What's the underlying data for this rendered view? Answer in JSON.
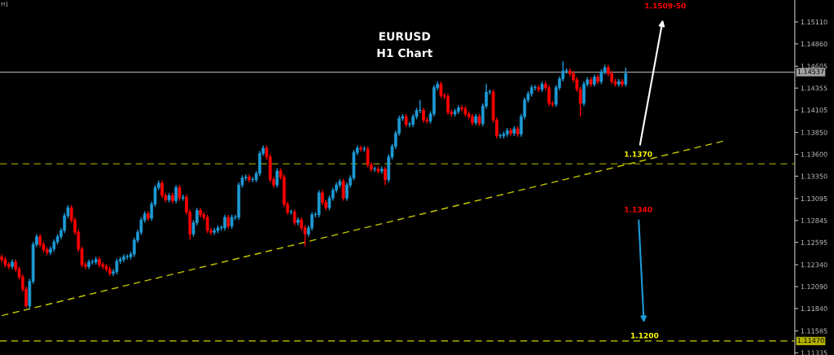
{
  "chart_data": {
    "type": "candlestick",
    "title": "EURUSD",
    "subtitle": "H1 Chart",
    "categories": [
      null,
      null,
      null,
      null,
      null,
      null,
      null,
      null,
      null,
      null,
      null,
      null,
      null,
      null,
      null,
      null,
      null,
      null,
      null,
      null,
      null,
      null,
      null,
      null,
      null,
      null,
      null,
      null,
      null,
      null,
      null,
      null,
      null,
      null,
      null,
      null,
      null,
      null,
      null,
      null,
      null,
      null,
      null,
      null,
      null,
      null,
      null,
      null,
      null,
      null,
      null,
      null,
      null,
      null,
      null,
      null,
      null,
      null,
      null,
      null,
      null,
      null,
      null,
      null,
      null,
      null,
      null,
      null,
      null,
      null,
      null,
      null,
      null,
      null,
      null,
      null,
      null,
      null,
      null,
      null,
      null,
      null,
      null,
      null,
      null,
      null,
      null,
      null,
      null,
      null,
      null,
      null,
      null,
      null,
      null,
      null,
      null,
      null,
      null,
      null,
      null,
      null,
      null,
      null,
      null,
      null,
      null,
      null,
      null,
      null,
      null,
      null,
      null,
      null,
      null,
      null,
      null,
      null,
      null,
      null,
      null,
      null,
      null,
      null,
      null,
      null,
      null,
      null,
      null,
      null,
      null,
      null,
      null,
      null,
      null,
      null,
      null,
      null,
      null,
      null,
      null,
      null,
      null,
      null,
      null,
      null,
      null,
      null,
      null,
      null,
      null,
      null,
      null,
      null,
      null,
      null,
      null,
      null,
      null,
      null,
      null,
      null,
      null,
      null,
      null,
      null,
      null,
      null,
      null,
      null,
      null,
      null,
      null,
      null,
      null,
      null,
      null,
      null,
      null,
      null,
      null,
      null,
      null,
      null,
      null,
      null,
      null,
      null,
      null,
      null,
      null,
      null,
      null,
      null,
      null,
      null,
      null,
      null,
      null,
      null,
      null,
      null,
      null,
      null,
      null,
      null,
      null,
      null,
      null,
      null,
      null,
      null,
      null,
      null,
      null,
      null,
      null,
      null,
      null,
      null,
      null,
      null,
      null,
      null,
      null,
      null,
      null,
      null
    ],
    "ohlc": [
      [
        1.1243,
        1.1246,
        1.1237,
        1.124
      ],
      [
        1.124,
        1.1243,
        1.1231,
        1.1234
      ],
      [
        1.1234,
        1.1237,
        1.1229,
        1.1232
      ],
      [
        1.1232,
        1.124,
        1.1229,
        1.1237
      ],
      [
        1.1237,
        1.124,
        1.1226,
        1.1229
      ],
      [
        1.1229,
        1.1232,
        1.1217,
        1.122
      ],
      [
        1.122,
        1.1223,
        1.1203,
        1.1206
      ],
      [
        1.1206,
        1.1209,
        1.1185,
        1.1187
      ],
      [
        1.1187,
        1.1218,
        1.1184,
        1.1215
      ],
      [
        1.1215,
        1.126,
        1.1212,
        1.1257
      ],
      [
        1.1257,
        1.1269,
        1.1254,
        1.1266
      ],
      [
        1.1266,
        1.1269,
        1.1254,
        1.1257
      ],
      [
        1.1257,
        1.126,
        1.1248,
        1.1251
      ],
      [
        1.1251,
        1.1254,
        1.1245,
        1.1248
      ],
      [
        1.1248,
        1.1255,
        1.1245,
        1.1252
      ],
      [
        1.1252,
        1.1263,
        1.1249,
        1.126
      ],
      [
        1.126,
        1.1269,
        1.1257,
        1.1266
      ],
      [
        1.1266,
        1.1276,
        1.1263,
        1.1273
      ],
      [
        1.1273,
        1.1293,
        1.127,
        1.129
      ],
      [
        1.129,
        1.1302,
        1.1287,
        1.1299
      ],
      [
        1.1299,
        1.1302,
        1.1282,
        1.1285
      ],
      [
        1.1285,
        1.1288,
        1.1268,
        1.1271
      ],
      [
        1.1271,
        1.1274,
        1.1249,
        1.1252
      ],
      [
        1.1252,
        1.1255,
        1.1231,
        1.1234
      ],
      [
        1.1234,
        1.1237,
        1.1229,
        1.1232
      ],
      [
        1.1232,
        1.124,
        1.1229,
        1.1237
      ],
      [
        1.1237,
        1.124,
        1.1234,
        1.1237
      ],
      [
        1.1237,
        1.1243,
        1.1234,
        1.124
      ],
      [
        1.124,
        1.1243,
        1.1231,
        1.1234
      ],
      [
        1.1234,
        1.1237,
        1.1229,
        1.1232
      ],
      [
        1.1232,
        1.1235,
        1.1226,
        1.1229
      ],
      [
        1.1229,
        1.1232,
        1.1221,
        1.1224
      ],
      [
        1.1224,
        1.1229,
        1.1221,
        1.1226
      ],
      [
        1.1226,
        1.1241,
        1.1223,
        1.1238
      ],
      [
        1.1238,
        1.1243,
        1.1235,
        1.124
      ],
      [
        1.124,
        1.1246,
        1.1237,
        1.1243
      ],
      [
        1.1243,
        1.1246,
        1.124,
        1.1243
      ],
      [
        1.1243,
        1.1249,
        1.124,
        1.1246
      ],
      [
        1.1246,
        1.1265,
        1.1243,
        1.1262
      ],
      [
        1.1262,
        1.1274,
        1.1259,
        1.1271
      ],
      [
        1.1271,
        1.1288,
        1.1268,
        1.1285
      ],
      [
        1.1285,
        1.1295,
        1.1282,
        1.1292
      ],
      [
        1.1292,
        1.1295,
        1.1284,
        1.1287
      ],
      [
        1.1287,
        1.1306,
        1.1284,
        1.1303
      ],
      [
        1.1303,
        1.1325,
        1.13,
        1.1322
      ],
      [
        1.1322,
        1.133,
        1.1319,
        1.1327
      ],
      [
        1.1327,
        1.133,
        1.131,
        1.1313
      ],
      [
        1.1313,
        1.1316,
        1.1305,
        1.1308
      ],
      [
        1.1308,
        1.1316,
        1.1305,
        1.1313
      ],
      [
        1.1313,
        1.1316,
        1.1304,
        1.1307
      ],
      [
        1.1307,
        1.1325,
        1.1304,
        1.1322
      ],
      [
        1.1322,
        1.1325,
        1.1307,
        1.131
      ],
      [
        1.131,
        1.1314,
        1.1307,
        1.1311
      ],
      [
        1.1311,
        1.1314,
        1.1291,
        1.1294
      ],
      [
        1.1294,
        1.1297,
        1.1263,
        1.1269
      ],
      [
        1.1269,
        1.1285,
        1.1266,
        1.1282
      ],
      [
        1.1282,
        1.1299,
        1.1279,
        1.1296
      ],
      [
        1.1296,
        1.1299,
        1.1288,
        1.1291
      ],
      [
        1.1291,
        1.1294,
        1.1285,
        1.1288
      ],
      [
        1.1288,
        1.1291,
        1.127,
        1.1273
      ],
      [
        1.1273,
        1.1276,
        1.1268,
        1.1271
      ],
      [
        1.1271,
        1.1276,
        1.1268,
        1.1273
      ],
      [
        1.1273,
        1.1279,
        1.127,
        1.1276
      ],
      [
        1.1276,
        1.1279,
        1.1273,
        1.1276
      ],
      [
        1.1276,
        1.1291,
        1.1273,
        1.1288
      ],
      [
        1.1288,
        1.1291,
        1.1275,
        1.1278
      ],
      [
        1.1278,
        1.1291,
        1.1275,
        1.1288
      ],
      [
        1.1288,
        1.1291,
        1.1285,
        1.1288
      ],
      [
        1.1288,
        1.1328,
        1.1285,
        1.1325
      ],
      [
        1.1325,
        1.1336,
        1.1322,
        1.1333
      ],
      [
        1.1333,
        1.1337,
        1.133,
        1.1334
      ],
      [
        1.1334,
        1.1337,
        1.1328,
        1.1331
      ],
      [
        1.1331,
        1.1334,
        1.1328,
        1.1331
      ],
      [
        1.1331,
        1.1341,
        1.1328,
        1.1338
      ],
      [
        1.1338,
        1.1364,
        1.1335,
        1.1361
      ],
      [
        1.1361,
        1.137,
        1.1358,
        1.1367
      ],
      [
        1.1367,
        1.137,
        1.1354,
        1.1357
      ],
      [
        1.1357,
        1.136,
        1.1328,
        1.1331
      ],
      [
        1.1331,
        1.1334,
        1.1322,
        1.1325
      ],
      [
        1.1325,
        1.1344,
        1.1322,
        1.1341
      ],
      [
        1.1341,
        1.1344,
        1.1331,
        1.1334
      ],
      [
        1.1334,
        1.1337,
        1.13,
        1.1303
      ],
      [
        1.1303,
        1.1306,
        1.1291,
        1.1294
      ],
      [
        1.1294,
        1.1297,
        1.1291,
        1.1294
      ],
      [
        1.1294,
        1.1297,
        1.1279,
        1.1282
      ],
      [
        1.1282,
        1.1288,
        1.1279,
        1.1285
      ],
      [
        1.1285,
        1.1288,
        1.1273,
        1.1276
      ],
      [
        1.1276,
        1.1279,
        1.1255,
        1.1269
      ],
      [
        1.1269,
        1.1279,
        1.1266,
        1.1276
      ],
      [
        1.1276,
        1.1294,
        1.1273,
        1.1291
      ],
      [
        1.1291,
        1.1294,
        1.1288,
        1.1291
      ],
      [
        1.1291,
        1.1319,
        1.1288,
        1.1316
      ],
      [
        1.1316,
        1.1319,
        1.1302,
        1.1305
      ],
      [
        1.1305,
        1.1308,
        1.1296,
        1.1299
      ],
      [
        1.1299,
        1.1313,
        1.1296,
        1.131
      ],
      [
        1.131,
        1.1322,
        1.1307,
        1.1319
      ],
      [
        1.1319,
        1.1328,
        1.1316,
        1.1325
      ],
      [
        1.1325,
        1.1332,
        1.1322,
        1.1329
      ],
      [
        1.1329,
        1.1332,
        1.1307,
        1.131
      ],
      [
        1.131,
        1.1328,
        1.1307,
        1.1325
      ],
      [
        1.1325,
        1.1336,
        1.1322,
        1.1333
      ],
      [
        1.1333,
        1.1365,
        1.133,
        1.1362
      ],
      [
        1.1362,
        1.137,
        1.1359,
        1.1367
      ],
      [
        1.1367,
        1.137,
        1.1363,
        1.1366
      ],
      [
        1.1366,
        1.1369,
        1.1363,
        1.1366
      ],
      [
        1.1366,
        1.1369,
        1.1345,
        1.1348
      ],
      [
        1.1348,
        1.1351,
        1.134,
        1.1343
      ],
      [
        1.1343,
        1.1346,
        1.134,
        1.1343
      ],
      [
        1.1343,
        1.1346,
        1.1338,
        1.1341
      ],
      [
        1.1341,
        1.1346,
        1.1338,
        1.1343
      ],
      [
        1.1343,
        1.1346,
        1.1325,
        1.1331
      ],
      [
        1.1331,
        1.136,
        1.1328,
        1.1357
      ],
      [
        1.1357,
        1.1372,
        1.1354,
        1.1369
      ],
      [
        1.1369,
        1.1387,
        1.1366,
        1.1384
      ],
      [
        1.1384,
        1.1404,
        1.1381,
        1.1401
      ],
      [
        1.1401,
        1.1406,
        1.1398,
        1.1403
      ],
      [
        1.1403,
        1.1406,
        1.1391,
        1.1394
      ],
      [
        1.1394,
        1.1397,
        1.1391,
        1.1394
      ],
      [
        1.1394,
        1.1406,
        1.1391,
        1.1403
      ],
      [
        1.1403,
        1.1413,
        1.14,
        1.141
      ],
      [
        1.141,
        1.1422,
        1.1407,
        1.141
      ],
      [
        1.141,
        1.1413,
        1.1396,
        1.1399
      ],
      [
        1.1399,
        1.1402,
        1.1395,
        1.1398
      ],
      [
        1.1398,
        1.1409,
        1.1395,
        1.1406
      ],
      [
        1.1406,
        1.1439,
        1.1403,
        1.1436
      ],
      [
        1.1436,
        1.1443,
        1.1433,
        1.144
      ],
      [
        1.144,
        1.1443,
        1.1424,
        1.1427
      ],
      [
        1.1427,
        1.143,
        1.1423,
        1.1426
      ],
      [
        1.1426,
        1.1429,
        1.1405,
        1.1408
      ],
      [
        1.1408,
        1.1411,
        1.1403,
        1.1406
      ],
      [
        1.1406,
        1.1412,
        1.1403,
        1.1409
      ],
      [
        1.1409,
        1.1416,
        1.1406,
        1.1413
      ],
      [
        1.1413,
        1.1416,
        1.1409,
        1.1412
      ],
      [
        1.1412,
        1.1415,
        1.1403,
        1.1406
      ],
      [
        1.1406,
        1.1409,
        1.14,
        1.1403
      ],
      [
        1.1403,
        1.1406,
        1.1393,
        1.1396
      ],
      [
        1.1396,
        1.1406,
        1.1393,
        1.1403
      ],
      [
        1.1403,
        1.1406,
        1.1392,
        1.1395
      ],
      [
        1.1395,
        1.1418,
        1.1392,
        1.1415
      ],
      [
        1.1415,
        1.144,
        1.1412,
        1.1431
      ],
      [
        1.1431,
        1.1434,
        1.1428,
        1.1431
      ],
      [
        1.1431,
        1.1434,
        1.1396,
        1.1399
      ],
      [
        1.1399,
        1.1402,
        1.1378,
        1.1381
      ],
      [
        1.1381,
        1.1384,
        1.1378,
        1.1381
      ],
      [
        1.1381,
        1.1386,
        1.1378,
        1.1383
      ],
      [
        1.1383,
        1.139,
        1.138,
        1.1387
      ],
      [
        1.1387,
        1.139,
        1.1381,
        1.1384
      ],
      [
        1.1384,
        1.1392,
        1.1381,
        1.1389
      ],
      [
        1.1389,
        1.1392,
        1.138,
        1.1383
      ],
      [
        1.1383,
        1.1406,
        1.138,
        1.1403
      ],
      [
        1.1403,
        1.1425,
        1.14,
        1.1422
      ],
      [
        1.1422,
        1.1432,
        1.1419,
        1.1429
      ],
      [
        1.1429,
        1.1439,
        1.1426,
        1.1436
      ],
      [
        1.1436,
        1.1439,
        1.1433,
        1.1436
      ],
      [
        1.1436,
        1.1439,
        1.1431,
        1.1434
      ],
      [
        1.1434,
        1.1443,
        1.1431,
        1.144
      ],
      [
        1.144,
        1.1443,
        1.1433,
        1.1436
      ],
      [
        1.1436,
        1.1439,
        1.1415,
        1.1418
      ],
      [
        1.1418,
        1.1421,
        1.1414,
        1.1417
      ],
      [
        1.1417,
        1.1439,
        1.1414,
        1.1436
      ],
      [
        1.1436,
        1.1449,
        1.1433,
        1.1446
      ],
      [
        1.1446,
        1.1466,
        1.1443,
        1.1455
      ],
      [
        1.1455,
        1.1458,
        1.1452,
        1.1455
      ],
      [
        1.1455,
        1.1458,
        1.1449,
        1.1452
      ],
      [
        1.1452,
        1.1455,
        1.1442,
        1.1445
      ],
      [
        1.1445,
        1.1448,
        1.1431,
        1.1434
      ],
      [
        1.1434,
        1.1437,
        1.1403,
        1.1418
      ],
      [
        1.1418,
        1.1443,
        1.1415,
        1.144
      ],
      [
        1.144,
        1.1448,
        1.1437,
        1.1445
      ],
      [
        1.1445,
        1.1448,
        1.1437,
        1.144
      ],
      [
        1.144,
        1.1451,
        1.1437,
        1.1448
      ],
      [
        1.1448,
        1.1451,
        1.144,
        1.1443
      ],
      [
        1.1443,
        1.1457,
        1.144,
        1.1454
      ],
      [
        1.1454,
        1.1462,
        1.1451,
        1.1459
      ],
      [
        1.1459,
        1.1462,
        1.1449,
        1.1452
      ],
      [
        1.1452,
        1.1455,
        1.144,
        1.1443
      ],
      [
        1.1443,
        1.1446,
        1.1437,
        1.144
      ],
      [
        1.144,
        1.1446,
        1.1437,
        1.1443
      ],
      [
        1.1443,
        1.1446,
        1.1437,
        1.144
      ],
      [
        1.144,
        1.1459,
        1.1437,
        1.1452
      ],
      null,
      null,
      null,
      null,
      null,
      null,
      null,
      null,
      null,
      null,
      null,
      null,
      null,
      null,
      null,
      null,
      null,
      null,
      null,
      null,
      null,
      null,
      null,
      null,
      null,
      null,
      null,
      null,
      null,
      null,
      null,
      null,
      null,
      null,
      null,
      null,
      null,
      null,
      null,
      null,
      null,
      null,
      null,
      null,
      null,
      null,
      null,
      null
    ],
    "series": [
      {
        "type": "line",
        "values": [
          1.1176,
          null,
          null,
          null,
          null,
          null,
          null,
          null,
          null,
          null,
          null,
          null,
          null,
          null,
          null,
          null,
          null,
          null,
          null,
          null,
          null,
          null,
          null,
          null,
          null,
          null,
          null,
          null,
          null,
          null,
          null,
          null,
          null,
          null,
          null,
          null,
          null,
          null,
          null,
          null,
          null,
          null,
          null,
          null,
          null,
          null,
          null,
          null,
          null,
          null,
          null,
          null,
          null,
          null,
          null,
          null,
          null,
          null,
          null,
          null,
          null,
          null,
          null,
          null,
          null,
          null,
          null,
          null,
          null,
          null,
          null,
          null,
          null,
          null,
          null,
          null,
          null,
          null,
          null,
          null,
          null,
          null,
          null,
          null,
          null,
          null,
          null,
          null,
          null,
          null,
          null,
          null,
          null,
          null,
          null,
          null,
          null,
          null,
          null,
          null,
          null,
          null,
          null,
          null,
          null,
          null,
          null,
          null,
          null,
          null,
          null,
          null,
          null,
          null,
          null,
          null,
          null,
          null,
          null,
          null,
          null,
          null,
          null,
          null,
          null,
          null,
          null,
          null,
          null,
          null,
          null,
          null,
          null,
          null,
          null,
          null,
          null,
          null,
          null,
          null,
          null,
          null,
          null,
          null,
          null,
          null,
          null,
          null,
          null,
          null,
          null,
          null,
          null,
          null,
          null,
          null,
          null,
          null,
          null,
          null,
          null,
          null,
          null,
          null,
          null,
          null,
          null,
          null,
          null,
          null,
          null,
          null,
          null,
          null,
          null,
          null,
          null,
          null,
          null,
          null,
          null,
          null,
          null,
          null,
          null,
          null,
          null,
          null,
          null,
          null,
          null,
          null,
          null,
          null,
          null,
          null,
          null,
          null,
          null,
          null,
          null,
          null,
          null,
          null,
          null,
          null,
          null,
          1.1375,
          null,
          null,
          null,
          null,
          null,
          null,
          null,
          null,
          null,
          null,
          null,
          null,
          null,
          null,
          null,
          null,
          null,
          null,
          null,
          null
        ],
        "color": "#c8c800",
        "line_style": "dashed"
      }
    ],
    "ref_lines": [
      {
        "axis": "y",
        "value": 1.14537,
        "label": "1.14537",
        "color": "#a0a0a0",
        "line_style": "solid"
      },
      {
        "axis": "y",
        "value": 1.1349,
        "color": "#808000",
        "line_style": "dashed"
      },
      {
        "axis": "y",
        "value": 1.1147,
        "label": "1.11470",
        "color": "#b0b000",
        "line_style": "dashed"
      }
    ],
    "annotations": [
      "H1",
      "1.1509-50",
      "1.1370",
      "1.1340",
      "1.1200"
    ],
    "ylim": [
      1.1131,
      1.1536
    ],
    "yticks": [
      {
        "value": 1.1511,
        "label": "1.15110"
      },
      {
        "value": 1.1486,
        "label": "1.14860"
      },
      1.14605,
      1.14355,
      1.14105,
      {
        "value": 1.1385,
        "label": "1.13850"
      },
      {
        "value": 1.136,
        "label": "1.13600"
      },
      {
        "value": 1.1335,
        "label": "1.13350"
      },
      1.13095,
      1.12845,
      1.12595,
      {
        "value": 1.1234,
        "label": "1.12340"
      },
      {
        "value": 1.1209,
        "label": "1.12090"
      },
      {
        "value": 1.1184,
        "label": "1.11840"
      },
      1.11585,
      1.11335
    ],
    "tick_labels": "y",
    "grid": false
  }
}
